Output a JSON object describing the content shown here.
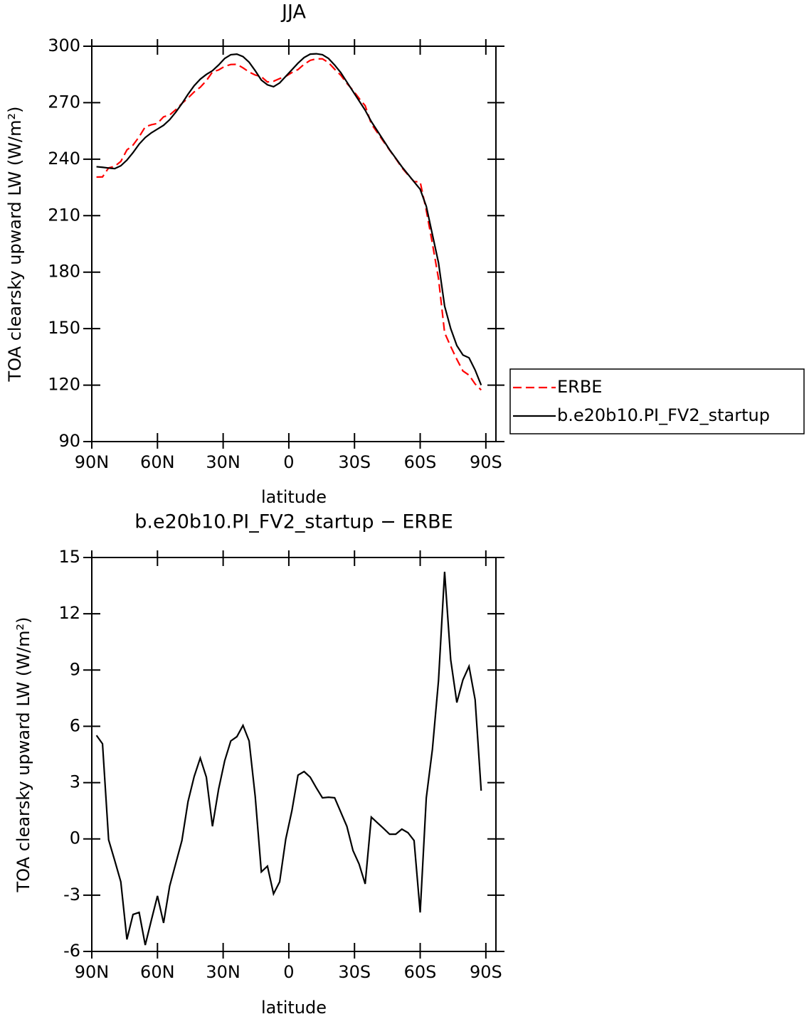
{
  "chart_data": [
    {
      "type": "line",
      "title": "JJA",
      "xlabel": "latitude",
      "ylabel": "TOA clearsky upward LW (W/m²)",
      "x": [
        87.86,
        85.1,
        82.31,
        79.53,
        76.74,
        73.95,
        71.16,
        68.37,
        65.58,
        62.79,
        60.0,
        57.21,
        54.42,
        51.63,
        48.84,
        46.04,
        43.25,
        40.46,
        37.67,
        34.88,
        32.09,
        29.3,
        26.51,
        23.72,
        20.93,
        18.14,
        15.35,
        12.56,
        9.77,
        6.98,
        4.19,
        1.4,
        -1.4,
        -4.19,
        -6.98,
        -9.77,
        -12.56,
        -15.35,
        -18.14,
        -20.93,
        -23.72,
        -26.51,
        -29.3,
        -32.09,
        -34.88,
        -37.67,
        -40.46,
        -43.25,
        -46.04,
        -48.84,
        -51.63,
        -54.42,
        -57.21,
        -60.0,
        -62.79,
        -65.58,
        -68.37,
        -71.16,
        -73.95,
        -76.74,
        -79.53,
        -82.31,
        -85.1,
        -87.86
      ],
      "series": [
        {
          "name": "ERBE",
          "color": "#ff0000",
          "line_style": "dashed",
          "values": [
            230.5,
            230.6,
            235.4,
            236.2,
            238.8,
            244.9,
            247.5,
            251.9,
            257.2,
            258.3,
            259.0,
            262.5,
            263.5,
            266.3,
            269.6,
            272.5,
            275.7,
            278.2,
            281.7,
            286.3,
            287.4,
            289.3,
            290.3,
            290.4,
            288.5,
            286.3,
            284.7,
            283.8,
            281.0,
            281.4,
            282.8,
            284.0,
            286.0,
            287.6,
            290.4,
            292.5,
            293.3,
            293.3,
            291.3,
            287.8,
            284.6,
            280.3,
            276.6,
            272.3,
            268.4,
            258.8,
            254.1,
            249.4,
            244.8,
            240.3,
            235.5,
            231.7,
            228.1,
            227.9,
            212.8,
            195.2,
            176.6,
            147.8,
            140.5,
            133.7,
            127.5,
            125.3,
            120.6,
            117.4
          ]
        },
        {
          "name": "b.e20b10.PI_FV2_startup",
          "color": "#000000",
          "line_style": "solid",
          "values": [
            236,
            235.7,
            235.3,
            235,
            236.5,
            239.5,
            243.5,
            248,
            251.5,
            254,
            256,
            258,
            261,
            265,
            269.5,
            274.5,
            279,
            282.5,
            285,
            287,
            290,
            293.5,
            295.5,
            295.8,
            294.5,
            291.5,
            287,
            282,
            279.5,
            278.5,
            280.5,
            284,
            287.5,
            291,
            294,
            295.8,
            296,
            295.5,
            293.5,
            290,
            286,
            281,
            276,
            271,
            266,
            260,
            255,
            250,
            245,
            240.5,
            236,
            232,
            228,
            224,
            215,
            200,
            185,
            162,
            150,
            141,
            136,
            134.5,
            128,
            120
          ]
        }
      ],
      "xlim": [
        90,
        -94.6
      ],
      "xticks": [
        {
          "value": 90,
          "label": "90N"
        },
        {
          "value": 60,
          "label": "60N"
        },
        {
          "value": 30,
          "label": "30N"
        },
        0,
        {
          "value": -30,
          "label": "30S"
        },
        {
          "value": -60,
          "label": "60S"
        },
        {
          "value": -90,
          "label": "90S"
        }
      ],
      "ylim": [
        90,
        300
      ],
      "yticks": [
        90,
        120,
        150,
        180,
        210,
        240,
        270,
        300
      ],
      "grid": false,
      "legend": "right"
    },
    {
      "type": "line",
      "title": "b.e20b10.PI_FV2_startup − ERBE",
      "xlabel": "latitude",
      "ylabel": "TOA clearsky upward LW (W/m²)",
      "x": [
        87.86,
        85.1,
        82.31,
        79.53,
        76.74,
        73.95,
        71.16,
        68.37,
        65.58,
        62.79,
        60.0,
        57.21,
        54.42,
        51.63,
        48.84,
        46.04,
        43.25,
        40.46,
        37.67,
        34.88,
        32.09,
        29.3,
        26.51,
        23.72,
        20.93,
        18.14,
        15.35,
        12.56,
        9.77,
        6.98,
        4.19,
        1.4,
        -1.4,
        -4.19,
        -6.98,
        -9.77,
        -12.56,
        -15.35,
        -18.14,
        -20.93,
        -23.72,
        -26.51,
        -29.3,
        -32.09,
        -34.88,
        -37.67,
        -40.46,
        -43.25,
        -46.04,
        -48.84,
        -51.63,
        -54.42,
        -57.21,
        -60.0,
        -62.79,
        -65.58,
        -68.37,
        -71.16,
        -73.95,
        -76.74,
        -79.53,
        -82.31,
        -85.1,
        -87.86
      ],
      "values": [
        5.52,
        5.07,
        -0.05,
        -1.15,
        -2.29,
        -5.36,
        -4.03,
        -3.92,
        -5.66,
        -4.33,
        -3.04,
        -4.48,
        -2.51,
        -1.3,
        -0.09,
        1.99,
        3.32,
        4.31,
        3.29,
        0.67,
        2.64,
        4.16,
        5.22,
        5.45,
        6.05,
        5.22,
        2.26,
        -1.76,
        -1.45,
        -2.93,
        -2.29,
        -0.01,
        1.5,
        3.4,
        3.59,
        3.29,
        2.72,
        2.19,
        2.22,
        2.19,
        1.43,
        0.67,
        -0.62,
        -1.34,
        -2.4,
        1.16,
        0.86,
        0.56,
        0.25,
        0.25,
        0.52,
        0.33,
        -0.09,
        -3.92,
        2.19,
        4.77,
        8.44,
        14.24,
        9.54,
        7.27,
        8.48,
        9.2,
        7.42,
        2.57
      ],
      "color": "#000000",
      "xlim": [
        90,
        -94.6
      ],
      "xticks": [
        {
          "value": 90,
          "label": "90N"
        },
        {
          "value": 60,
          "label": "60N"
        },
        {
          "value": 30,
          "label": "30N"
        },
        0,
        {
          "value": -30,
          "label": "30S"
        },
        {
          "value": -60,
          "label": "60S"
        },
        {
          "value": -90,
          "label": "90S"
        }
      ],
      "ylim": [
        -6,
        15
      ],
      "yticks": [
        -6,
        -3,
        0,
        3,
        6,
        9,
        12,
        15
      ],
      "grid": false
    }
  ]
}
